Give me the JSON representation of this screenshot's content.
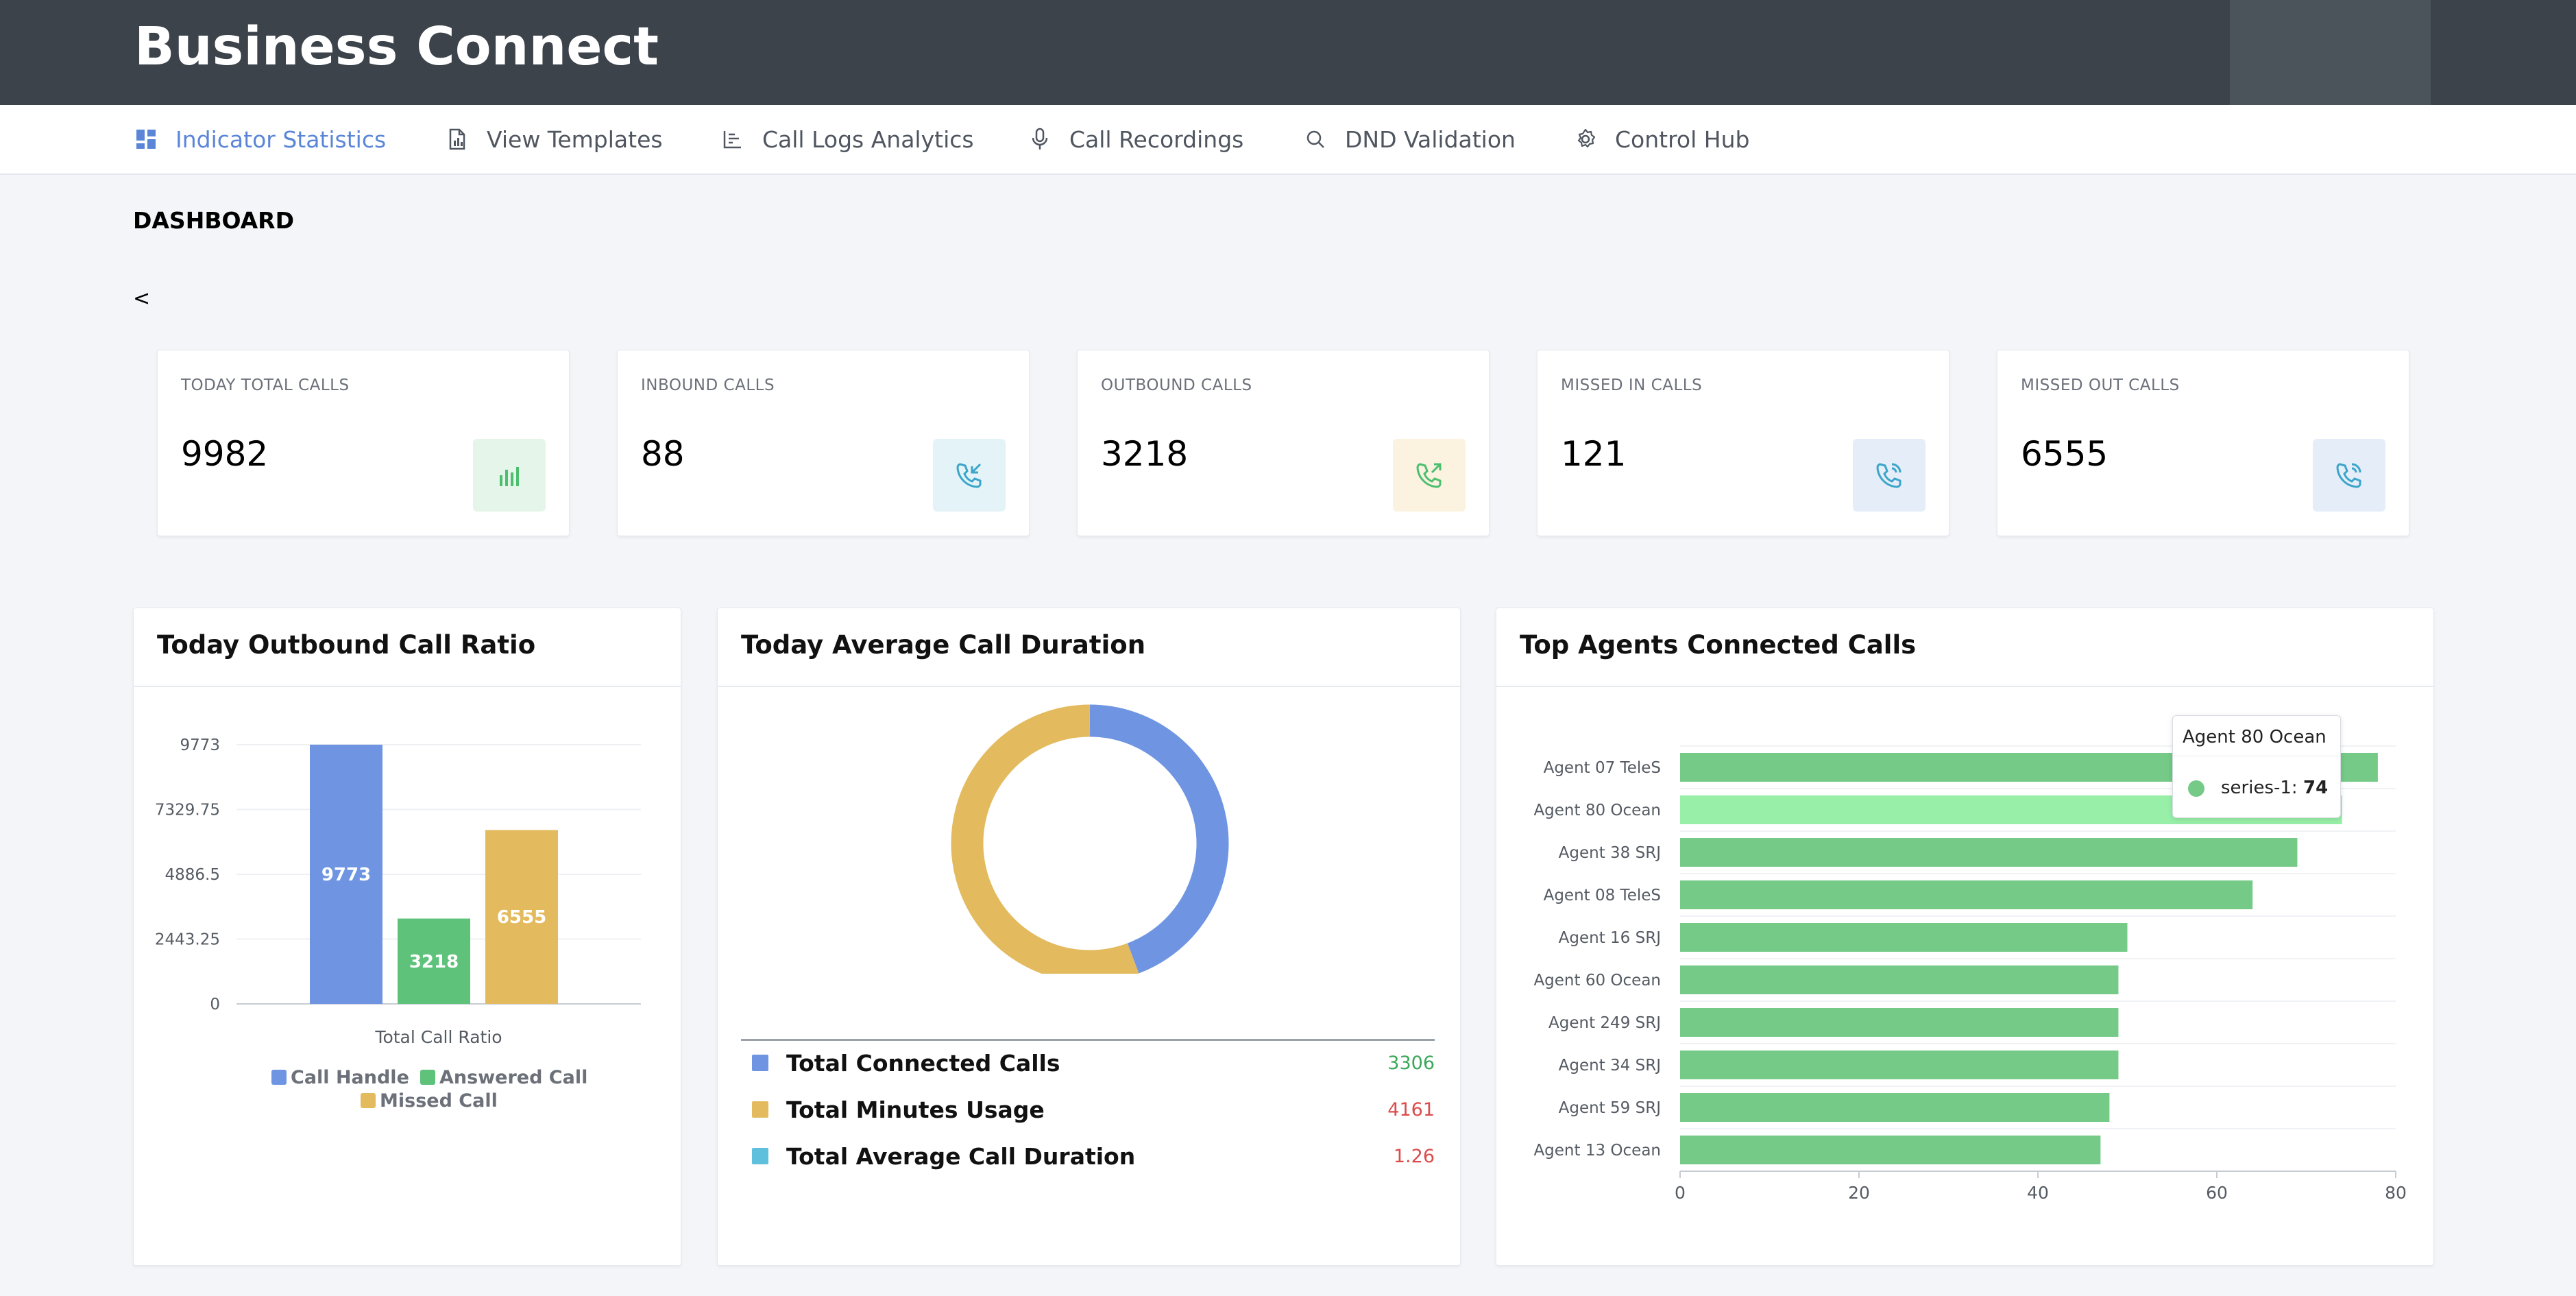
{
  "app": {
    "title": "Business Connect"
  },
  "nav": {
    "items": [
      {
        "label": "Indicator Statistics",
        "icon": "dashboard-icon",
        "active": true
      },
      {
        "label": "View Templates",
        "icon": "document-icon"
      },
      {
        "label": "Call Logs Analytics",
        "icon": "bar-chart-icon"
      },
      {
        "label": "Call Recordings",
        "icon": "microphone-icon"
      },
      {
        "label": "DND Validation",
        "icon": "search-icon"
      },
      {
        "label": "Control Hub",
        "icon": "gear-icon"
      }
    ]
  },
  "page": {
    "title": "DASHBOARD",
    "back_label": "<"
  },
  "stats": [
    {
      "label": "TODAY TOTAL CALLS",
      "value": "9982",
      "icon": "bar-chart-icon",
      "color": "#4cbf6f"
    },
    {
      "label": "INBOUND CALLS",
      "value": "88",
      "icon": "phone-incoming-icon",
      "color": "#3ba5c9"
    },
    {
      "label": "OUTBOUND CALLS",
      "value": "3218",
      "icon": "phone-outgoing-icon",
      "color": "#4cbf6f"
    },
    {
      "label": "MISSED IN CALLS",
      "value": "121",
      "icon": "phone-missed-icon",
      "color": "#3ba5c9"
    },
    {
      "label": "MISSED OUT CALLS",
      "value": "6555",
      "icon": "phone-missed-icon",
      "color": "#3ba5c9"
    }
  ],
  "panels": {
    "outbound_ratio": {
      "title": "Today Outbound Call Ratio"
    },
    "avg_duration": {
      "title": "Today Average Call Duration"
    },
    "top_agents": {
      "title": "Top Agents Connected Calls"
    }
  },
  "chart_data": [
    {
      "type": "bar",
      "title": "Today Outbound Call Ratio",
      "xlabel": "Total Call Ratio",
      "ylabel": "",
      "categories": [
        "Total Call Ratio"
      ],
      "ylim": [
        0,
        9773
      ],
      "yticks": [
        "9773",
        "7329.75",
        "4886.5",
        "2443.25",
        "0"
      ],
      "series": [
        {
          "name": "Call Handle",
          "values": [
            9773
          ],
          "color": "#6f95e2"
        },
        {
          "name": "Answered Call",
          "values": [
            3218
          ],
          "color": "#5ec27b"
        },
        {
          "name": "Missed Call",
          "values": [
            6555
          ],
          "color": "#e3bb5e"
        }
      ],
      "legend": "bottom",
      "grid": true
    },
    {
      "type": "pie",
      "title": "Today Average Call Duration",
      "donut": true,
      "slices": [
        {
          "name": "Total Connected Calls",
          "value": 3306,
          "color": "#6f95e2"
        },
        {
          "name": "Total Minutes Usage",
          "value": 4161,
          "color": "#e3bb5e"
        },
        {
          "name": "Total Average Call Duration",
          "value": 1.26,
          "color": "#5fc0de"
        }
      ],
      "table": [
        {
          "label": "Total Connected Calls",
          "value": "3306",
          "swatch": "#6f95e2",
          "value_color": "#3aa85a"
        },
        {
          "label": "Total Minutes Usage",
          "value": "4161",
          "swatch": "#e3bb5e",
          "value_color": "#dc4b4b"
        },
        {
          "label": "Total Average Call Duration",
          "value": "1.26",
          "swatch": "#5fc0de",
          "value_color": "#dc4b4b"
        }
      ]
    },
    {
      "type": "bar",
      "orientation": "horizontal",
      "title": "Top Agents Connected Calls",
      "categories": [
        "Agent 07 TeleS",
        "Agent 80 Ocean",
        "Agent 38 SRJ",
        "Agent 08 TeleS",
        "Agent 16 SRJ",
        "Agent 60 Ocean",
        "Agent 249 SRJ",
        "Agent 34 SRJ",
        "Agent 59 SRJ",
        "Agent 13 Ocean"
      ],
      "series": [
        {
          "name": "series-1",
          "values": [
            78,
            74,
            69,
            64,
            50,
            49,
            49,
            49,
            48,
            47
          ],
          "color": "#74ca86"
        }
      ],
      "xlim": [
        0,
        80
      ],
      "xticks": [
        "0",
        "20",
        "40",
        "60",
        "80"
      ],
      "grid": true,
      "highlight_index": 1,
      "highlight_color": "#98f0a8",
      "tooltip": {
        "title": "Agent 80 Ocean",
        "series": "series-1",
        "value": "74"
      }
    }
  ]
}
